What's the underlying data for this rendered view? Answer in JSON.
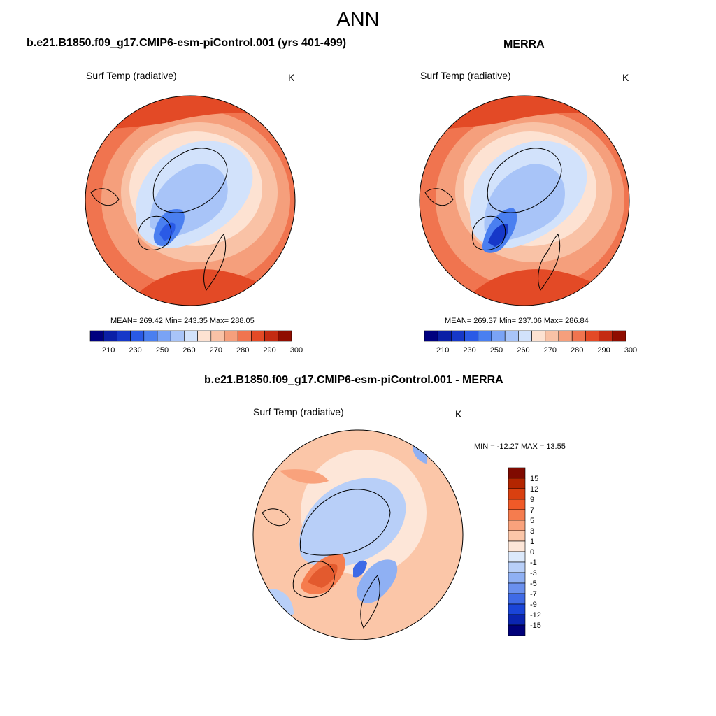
{
  "page": {
    "title": "ANN"
  },
  "panels": [
    {
      "title": "b.e21.B1850.f09_g17.CMIP6-esm-piControl.001 (yrs 401-499)",
      "variable": "Surf Temp (radiative)",
      "units": "K",
      "stats": "MEAN= 269.42  Min= 243.35  Max= 288.05"
    },
    {
      "title": "MERRA",
      "variable": "Surf Temp (radiative)",
      "units": "K",
      "stats": "MEAN= 269.37  Min= 237.06  Max= 286.84"
    },
    {
      "title": "b.e21.B1850.f09_g17.CMIP6-esm-piControl.001 - MERRA",
      "variable": "Surf Temp (radiative)",
      "units": "K",
      "stats": "MIN = -12.27 MAX =  13.55"
    }
  ],
  "colorbars": {
    "absolute": {
      "tick_labels": [
        "210",
        "230",
        "250",
        "260",
        "270",
        "280",
        "290",
        "300"
      ],
      "colors": [
        "#00007f",
        "#0a1fa6",
        "#1638c8",
        "#2a5ae6",
        "#4a7ff0",
        "#7aa3f5",
        "#a8c4f8",
        "#d2e2fb",
        "#fde2d2",
        "#f9c2a6",
        "#f59f7c",
        "#f0744f",
        "#e34a26",
        "#c42b12",
        "#8f0d00"
      ]
    },
    "difference": {
      "tick_labels": [
        "15",
        "12",
        "9",
        "7",
        "5",
        "3",
        "1",
        "0",
        "-1",
        "-3",
        "-5",
        "-7",
        "-9",
        "-12",
        "-15"
      ],
      "colors": [
        "#7f0a00",
        "#b32500",
        "#d94010",
        "#f05a28",
        "#f57c4e",
        "#f9a27c",
        "#fbc6a8",
        "#fde6d8",
        "#dce9fb",
        "#b8cff8",
        "#8fb0f3",
        "#6a90ee",
        "#3f6ae6",
        "#1a45d8",
        "#0b25b0",
        "#00007a"
      ]
    }
  }
}
